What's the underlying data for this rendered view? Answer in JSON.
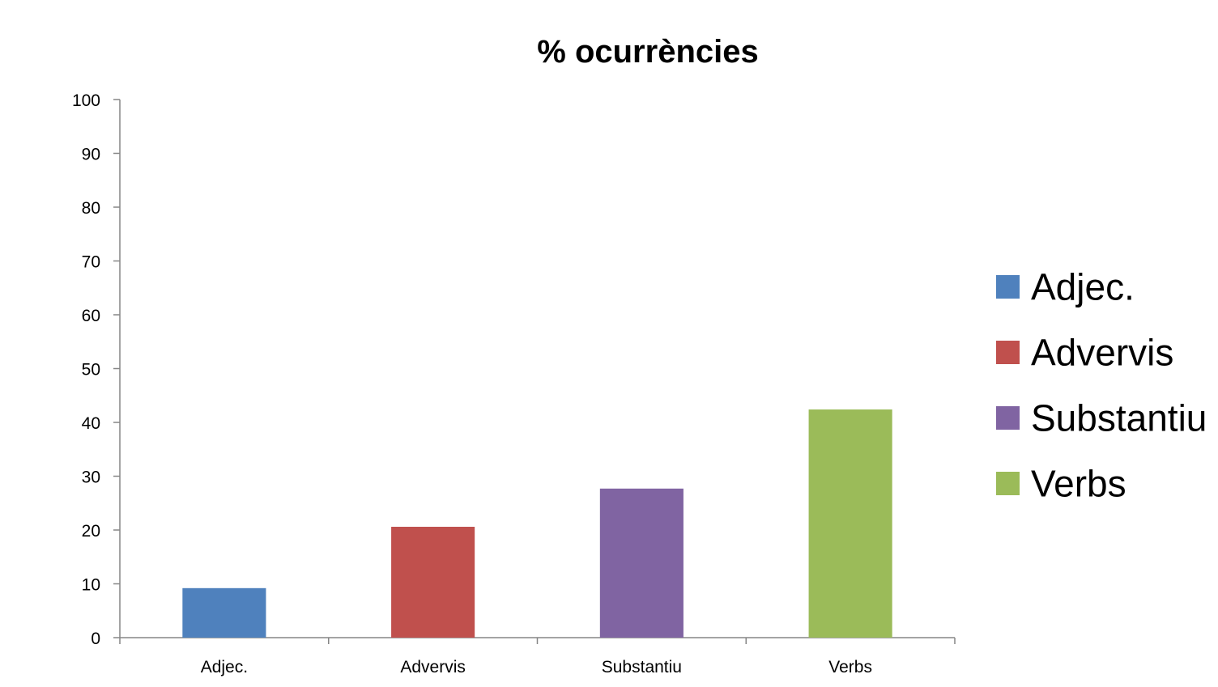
{
  "chart_data": {
    "type": "bar",
    "title": "% ocurrències",
    "xlabel": "",
    "ylabel": "",
    "categories": [
      "Adjec.",
      "Advervis",
      "Substantiu",
      "Verbs"
    ],
    "values": [
      9.2,
      20.6,
      27.7,
      42.4
    ],
    "colors": [
      "#4f81bd",
      "#c0504d",
      "#8064a2",
      "#9bbb59"
    ],
    "ylim": [
      0,
      100
    ],
    "yticks": [
      0,
      10,
      20,
      30,
      40,
      50,
      60,
      70,
      80,
      90,
      100
    ],
    "grid": false,
    "legend": {
      "position": "right",
      "entries": [
        "Adjec.",
        "Advervis",
        "Substantiu",
        "Verbs"
      ]
    }
  }
}
